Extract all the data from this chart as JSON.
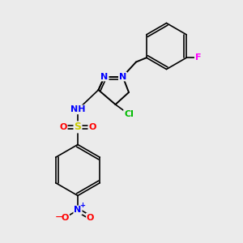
{
  "background_color": "#ebebeb",
  "bond_color": "#000000",
  "atom_colors": {
    "N": "#0000ff",
    "O": "#ff0000",
    "S": "#cccc00",
    "Cl": "#00bb00",
    "F": "#ff00ff",
    "H": "#555555",
    "C": "#000000"
  }
}
